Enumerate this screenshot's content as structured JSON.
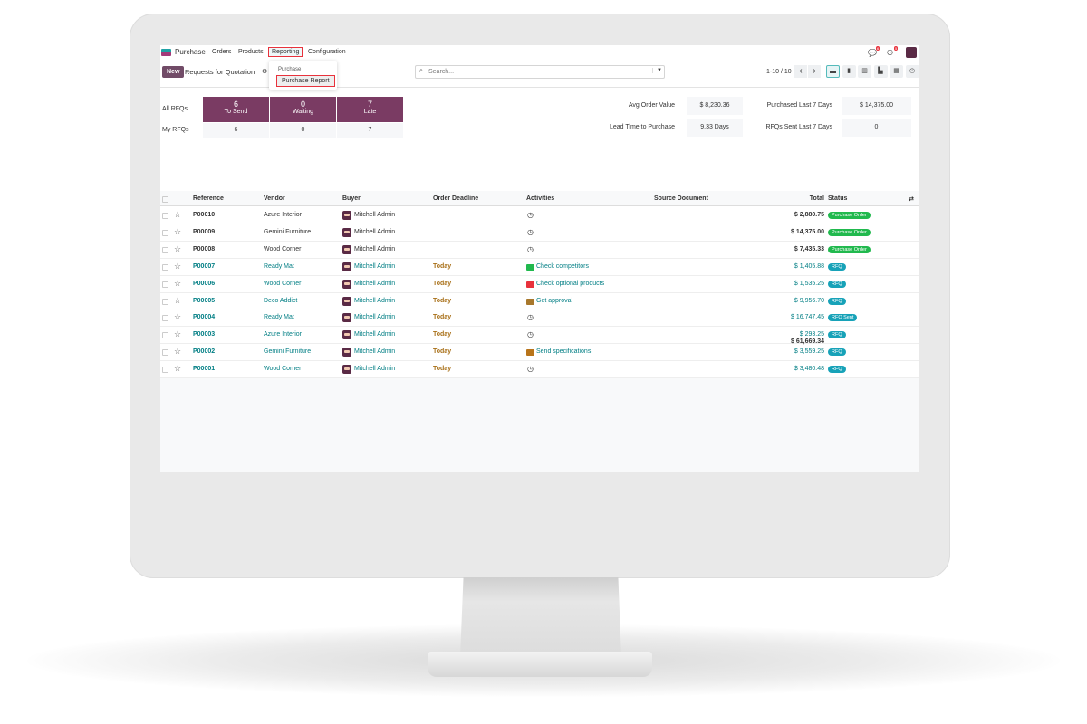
{
  "nav": {
    "app": "Purchase",
    "items": [
      "Orders",
      "Products",
      "Reporting",
      "Configuration"
    ],
    "chat_badge": "6",
    "activity_badge": "5"
  },
  "dropdown": {
    "section": "Purchase",
    "item": "Purchase Report"
  },
  "control": {
    "new_label": "New",
    "title": "Requests for Quotation",
    "search_placeholder": "Search...",
    "pager": "1-10 / 10",
    "prev": "‹",
    "next": "›"
  },
  "views": [
    {
      "icon": "list-icon",
      "glyph": "▬"
    },
    {
      "icon": "kanban-icon",
      "glyph": "▮"
    },
    {
      "icon": "pivot-icon",
      "glyph": "▥"
    },
    {
      "icon": "graph-icon",
      "glyph": "▙"
    },
    {
      "icon": "calendar-icon",
      "glyph": "▦"
    },
    {
      "icon": "activity-icon",
      "glyph": "◷"
    }
  ],
  "dashboard": {
    "all_label": "All RFQs",
    "my_label": "My RFQs",
    "tiles": [
      {
        "value": "6",
        "label": "To Send",
        "mine": "6"
      },
      {
        "value": "0",
        "label": "Waiting",
        "mine": "0"
      },
      {
        "value": "7",
        "label": "Late",
        "mine": "7"
      }
    ],
    "kpis": [
      {
        "label": "Avg Order Value",
        "value": "$ 8,230.36"
      },
      {
        "label": "Lead Time to Purchase",
        "value": "9.33 Days"
      },
      {
        "label": "Purchased Last 7 Days",
        "value": "$ 14,375.00"
      },
      {
        "label": "RFQs Sent Last 7 Days",
        "value": "0"
      }
    ]
  },
  "table": {
    "headers": {
      "reference": "Reference",
      "vendor": "Vendor",
      "buyer": "Buyer",
      "deadline": "Order Deadline",
      "activities": "Activities",
      "source": "Source Document",
      "total": "Total",
      "status": "Status"
    },
    "rows": [
      {
        "ref": "P00010",
        "vendor": "Azure Interior",
        "buyer": "Mitchell Admin",
        "deadline": "",
        "activity": "",
        "activity_color": "",
        "total": "$ 2,880.75",
        "status": "Purchase Order",
        "highlight": false
      },
      {
        "ref": "P00009",
        "vendor": "Gemini Furniture",
        "buyer": "Mitchell Admin",
        "deadline": "",
        "activity": "",
        "activity_color": "",
        "total": "$ 14,375.00",
        "status": "Purchase Order",
        "highlight": false
      },
      {
        "ref": "P00008",
        "vendor": "Wood Corner",
        "buyer": "Mitchell Admin",
        "deadline": "",
        "activity": "",
        "activity_color": "",
        "total": "$ 7,435.33",
        "status": "Purchase Order",
        "highlight": false
      },
      {
        "ref": "P00007",
        "vendor": "Ready Mat",
        "buyer": "Mitchell Admin",
        "deadline": "Today",
        "activity": "Check competitors",
        "activity_color": "#21b94e",
        "total": "$ 1,405.88",
        "status": "RFQ",
        "highlight": true
      },
      {
        "ref": "P00006",
        "vendor": "Wood Corner",
        "buyer": "Mitchell Admin",
        "deadline": "Today",
        "activity": "Check optional products",
        "activity_color": "#e8323c",
        "total": "$ 1,535.25",
        "status": "RFQ",
        "highlight": true
      },
      {
        "ref": "P00005",
        "vendor": "Deco Addict",
        "buyer": "Mitchell Admin",
        "deadline": "Today",
        "activity": "Get approval",
        "activity_color": "#a8782c",
        "total": "$ 9,956.70",
        "status": "RFQ",
        "highlight": true
      },
      {
        "ref": "P00004",
        "vendor": "Ready Mat",
        "buyer": "Mitchell Admin",
        "deadline": "Today",
        "activity": "",
        "activity_color": "",
        "total": "$ 16,747.45",
        "status": "RFQ Sent",
        "highlight": true
      },
      {
        "ref": "P00003",
        "vendor": "Azure Interior",
        "buyer": "Mitchell Admin",
        "deadline": "Today",
        "activity": "",
        "activity_color": "",
        "total": "$ 293.25",
        "status": "RFQ",
        "highlight": true
      },
      {
        "ref": "P00002",
        "vendor": "Gemini Furniture",
        "buyer": "Mitchell Admin",
        "deadline": "Today",
        "activity": "Send specifications",
        "activity_color": "#b8741a",
        "total": "$ 3,559.25",
        "status": "RFQ",
        "highlight": true
      },
      {
        "ref": "P00001",
        "vendor": "Wood Corner",
        "buyer": "Mitchell Admin",
        "deadline": "Today",
        "activity": "",
        "activity_color": "",
        "total": "$ 3,480.48",
        "status": "RFQ",
        "highlight": true
      }
    ],
    "grand_total": "$ 61,669.34"
  },
  "colors": {
    "brand": "#714b67",
    "tile": "#7a3b63",
    "teal": "#017e84",
    "po_badge": "#21b94e",
    "rfq_badge": "#17a2b8",
    "highlight_box": "#e8323c"
  }
}
